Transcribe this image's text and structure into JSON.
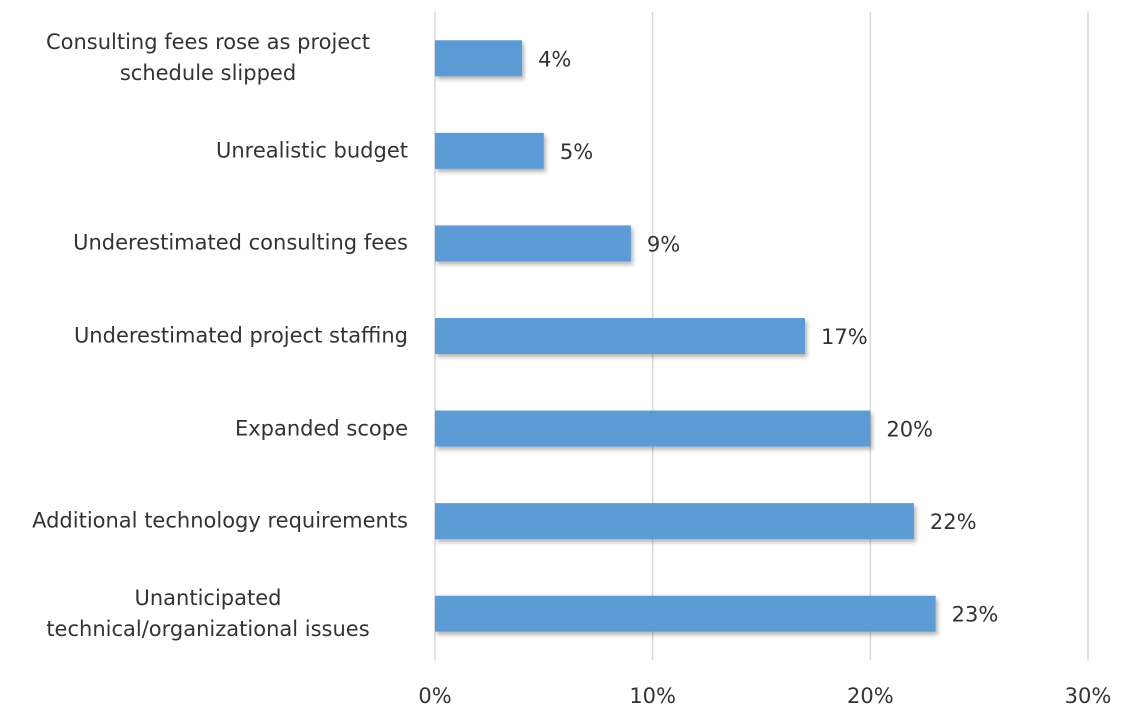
{
  "chart_data": {
    "type": "bar",
    "orientation": "horizontal",
    "categories": [
      "Consulting fees rose as project schedule slipped",
      "Unrealistic budget",
      "Underestimated consulting fees",
      "Underestimated project staffing",
      "Expanded scope",
      "Additional technology requirements",
      "Unanticipated technical/organizational issues"
    ],
    "values": [
      4,
      5,
      9,
      17,
      20,
      22,
      23
    ],
    "value_labels": [
      "4%",
      "5%",
      "9%",
      "17%",
      "20%",
      "22%",
      "23%"
    ],
    "color": "#5b9bd5",
    "xlim": [
      0,
      30
    ],
    "xticks": [
      {
        "value": 0,
        "label": "0%"
      },
      {
        "value": 10,
        "label": "10%"
      },
      {
        "value": 20,
        "label": "20%"
      },
      {
        "value": 30,
        "label": "30%"
      }
    ],
    "grid": true
  }
}
